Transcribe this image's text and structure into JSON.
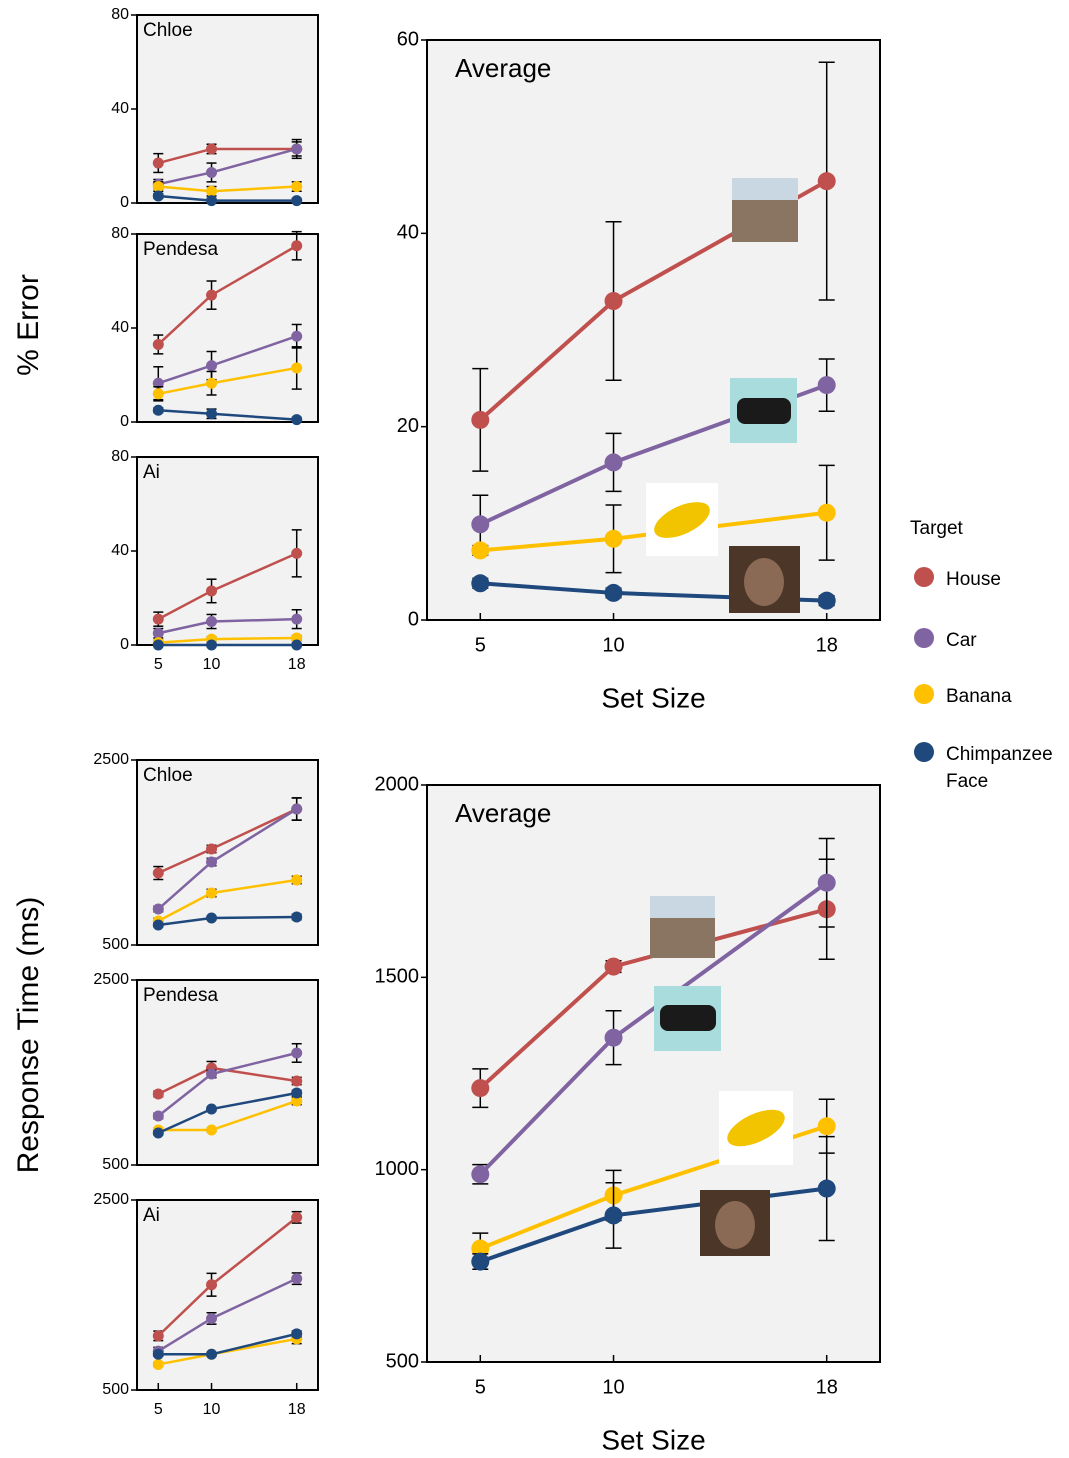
{
  "y_labels": [
    "% Error",
    "Response Time (ms)"
  ],
  "legend": {
    "title": "Target",
    "entries": [
      {
        "name": "House",
        "color": "#c0504d"
      },
      {
        "name": "Car",
        "color": "#8064a2"
      },
      {
        "name": "Banana",
        "color": "#ffc000"
      },
      {
        "name": "Chimpanzee Face",
        "color": "#1f497d"
      }
    ]
  },
  "chart_data": [
    {
      "type": "line",
      "title": "Chloe",
      "x": [
        5,
        10,
        18
      ],
      "xlim": [
        3,
        20
      ],
      "ylim": [
        0,
        80
      ],
      "yticks": [
        0,
        40,
        80
      ],
      "series": [
        {
          "values": [
            17,
            23,
            23
          ],
          "errors": [
            4,
            2,
            4
          ]
        },
        {
          "values": [
            8,
            13,
            23
          ],
          "errors": [
            2,
            4,
            3
          ]
        },
        {
          "values": [
            7,
            5,
            7
          ],
          "errors": [
            2,
            2,
            2
          ]
        },
        {
          "values": [
            3,
            1,
            1
          ],
          "errors": [
            1,
            1,
            1
          ]
        }
      ]
    },
    {
      "type": "line",
      "title": "Pendesa",
      "x": [
        5,
        10,
        18
      ],
      "xlim": [
        3,
        20
      ],
      "ylim": [
        0,
        80
      ],
      "yticks": [
        0,
        40,
        80
      ],
      "series": [
        {
          "values": [
            33,
            54,
            75
          ],
          "errors": [
            4,
            6,
            6
          ]
        },
        {
          "values": [
            16.5,
            24,
            36.5
          ],
          "errors": [
            7,
            6,
            5
          ]
        },
        {
          "values": [
            12,
            16.5,
            23
          ],
          "errors": [
            3,
            5,
            9
          ]
        },
        {
          "values": [
            5,
            3.5,
            1
          ],
          "errors": [
            1,
            2,
            1
          ]
        }
      ]
    },
    {
      "type": "line",
      "title": "Ai",
      "x": [
        5,
        10,
        18
      ],
      "xlim": [
        3,
        20
      ],
      "ylim": [
        0,
        80
      ],
      "yticks": [
        0,
        40,
        80
      ],
      "xticks": [
        5,
        10,
        18
      ],
      "series": [
        {
          "values": [
            11,
            23,
            39
          ],
          "errors": [
            3,
            5,
            10
          ]
        },
        {
          "values": [
            5,
            10,
            11
          ],
          "errors": [
            2,
            3,
            4
          ]
        },
        {
          "values": [
            1,
            2.5,
            3
          ],
          "errors": [
            1,
            1,
            1
          ]
        },
        {
          "values": [
            0,
            0,
            0
          ],
          "errors": [
            0.5,
            0.5,
            0.5
          ]
        }
      ]
    },
    {
      "type": "line",
      "title": "Average",
      "x": [
        5,
        10,
        18
      ],
      "xlim": [
        3,
        20
      ],
      "ylim": [
        0,
        60
      ],
      "yticks": [
        0,
        20,
        40,
        60
      ],
      "xticks": [
        5,
        10,
        18
      ],
      "xlabel": "Set Size",
      "series": [
        {
          "values": [
            20.7,
            33,
            45.4
          ],
          "errors": [
            5.3,
            8.2,
            12.3
          ]
        },
        {
          "values": [
            9.9,
            16.3,
            24.3
          ],
          "errors": [
            3,
            3,
            2.7
          ]
        },
        {
          "values": [
            7.2,
            8.4,
            11.1
          ],
          "errors": [
            0.5,
            3.5,
            4.9
          ]
        },
        {
          "values": [
            3.8,
            2.8,
            2.0
          ],
          "errors": [
            0.5,
            0.5,
            0.5
          ]
        }
      ]
    },
    {
      "type": "line",
      "title": "Chloe",
      "x": [
        5,
        10,
        18
      ],
      "xlim": [
        3,
        20
      ],
      "ylim": [
        500,
        2500
      ],
      "yticks": [
        500,
        2500
      ],
      "series": [
        {
          "values": [
            1278,
            1538,
            1970
          ],
          "errors": [
            70,
            40,
            120
          ]
        },
        {
          "values": [
            889,
            1397,
            1970
          ],
          "errors": [
            30,
            40,
            120
          ]
        },
        {
          "values": [
            759,
            1062,
            1203
          ],
          "errors": [
            30,
            40,
            40
          ]
        },
        {
          "values": [
            716,
            792,
            803
          ],
          "errors": [
            20,
            20,
            30
          ]
        }
      ]
    },
    {
      "type": "line",
      "title": "Pendesa",
      "x": [
        5,
        10,
        18
      ],
      "xlim": [
        3,
        20
      ],
      "ylim": [
        500,
        2500
      ],
      "yticks": [
        500,
        2500
      ],
      "series": [
        {
          "values": [
            1268,
            1549,
            1408
          ],
          "errors": [
            30,
            70,
            40
          ]
        },
        {
          "values": [
            1030,
            1484,
            1711
          ],
          "errors": [
            30,
            40,
            100
          ]
        },
        {
          "values": [
            878,
            878,
            1192
          ],
          "errors": [
            20,
            20,
            40
          ]
        },
        {
          "values": [
            846,
            1105,
            1278
          ],
          "errors": [
            20,
            20,
            30
          ]
        }
      ]
    },
    {
      "type": "line",
      "title": "Ai",
      "x": [
        5,
        10,
        18
      ],
      "xlim": [
        3,
        20
      ],
      "ylim": [
        500,
        2500
      ],
      "yticks": [
        500,
        2500
      ],
      "xticks": [
        5,
        10,
        18
      ],
      "series": [
        {
          "values": [
            1070,
            1608,
            2317
          ],
          "errors": [
            50,
            120,
            60
          ]
        },
        {
          "values": [
            909,
            1253,
            1672
          ],
          "errors": [
            40,
            60,
            60
          ]
        },
        {
          "values": [
            769,
            876,
            1038
          ],
          "errors": [
            20,
            20,
            50
          ]
        },
        {
          "values": [
            876,
            876,
            1091
          ],
          "errors": [
            20,
            20,
            30
          ]
        }
      ]
    },
    {
      "type": "line",
      "title": "Average",
      "x": [
        5,
        10,
        18
      ],
      "xlim": [
        3,
        20
      ],
      "ylim": [
        500,
        2000
      ],
      "yticks": [
        500,
        1000,
        1500,
        2000
      ],
      "xticks": [
        5,
        10,
        18
      ],
      "xlabel": "Set Size",
      "series": [
        {
          "values": [
            1212,
            1528,
            1677
          ],
          "errors": [
            50,
            15,
            130
          ]
        },
        {
          "values": [
            988,
            1343,
            1746
          ],
          "errors": [
            25,
            70,
            115
          ]
        },
        {
          "values": [
            795,
            933,
            1113
          ],
          "errors": [
            40,
            65,
            70
          ]
        },
        {
          "values": [
            761,
            881,
            951
          ],
          "errors": [
            20,
            85,
            135
          ]
        }
      ]
    }
  ]
}
